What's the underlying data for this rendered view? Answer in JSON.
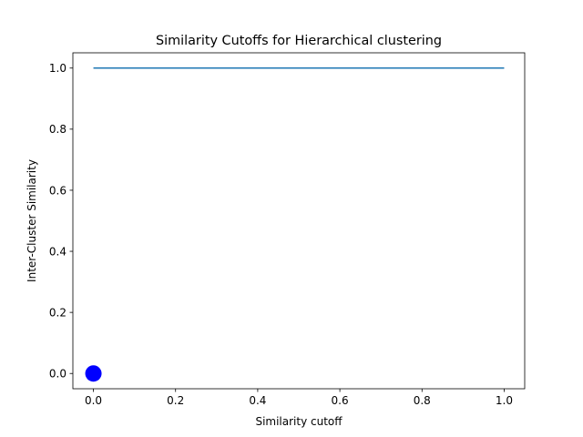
{
  "chart_data": {
    "type": "line",
    "title": "Similarity Cutoffs for Hierarchical clustering",
    "xlabel": "Similarity cutoff",
    "ylabel": "Inter-Cluster Similarity",
    "xlim": [
      -0.05,
      1.05
    ],
    "ylim": [
      -0.05,
      1.05
    ],
    "x_ticks": [
      0.0,
      0.2,
      0.4,
      0.6,
      0.8,
      1.0
    ],
    "x_tick_labels": [
      "0.0",
      "0.2",
      "0.4",
      "0.6",
      "0.8",
      "1.0"
    ],
    "y_ticks": [
      0.0,
      0.2,
      0.4,
      0.6,
      0.8,
      1.0
    ],
    "y_tick_labels": [
      "0.0",
      "0.2",
      "0.4",
      "0.6",
      "0.8",
      "1.0"
    ],
    "grid": false,
    "series": [
      {
        "type": "line",
        "color": "#1f77b4",
        "x": [
          0.0,
          1.0
        ],
        "y": [
          1.0,
          1.0
        ]
      },
      {
        "type": "scatter",
        "color": "#0000ff",
        "x": [
          0.0
        ],
        "y": [
          0.0
        ]
      }
    ]
  }
}
